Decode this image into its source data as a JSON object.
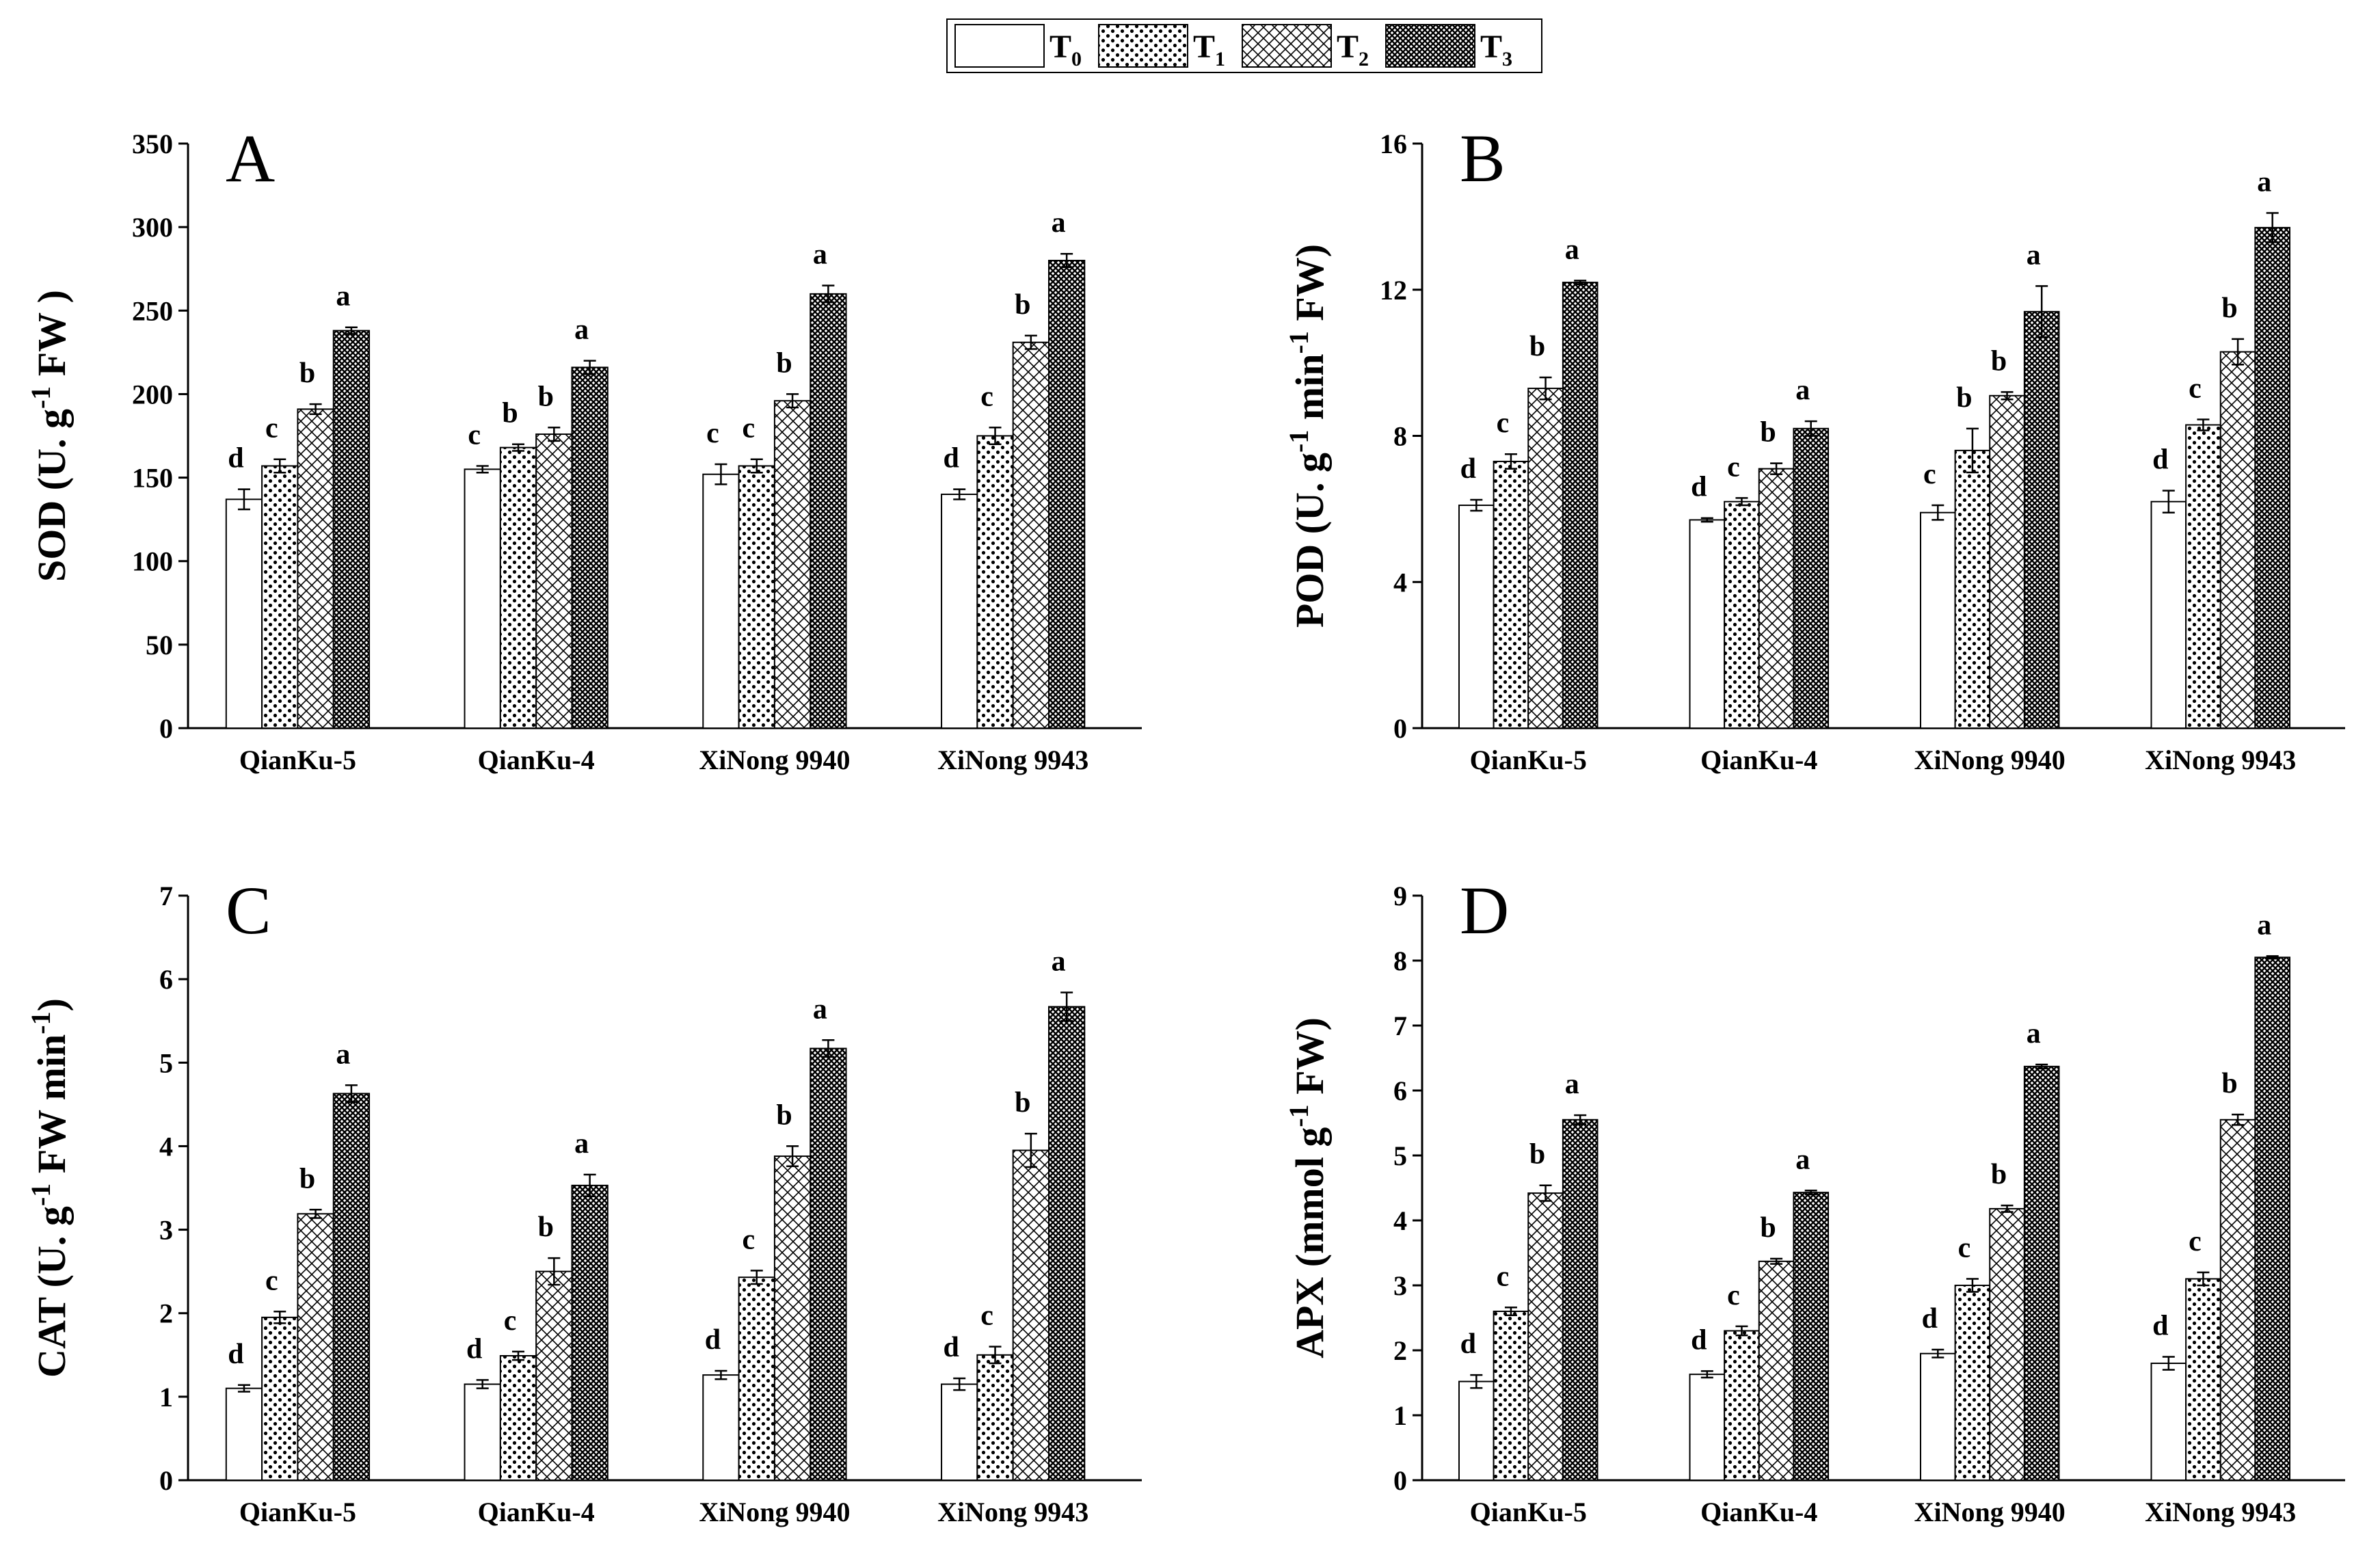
{
  "legend": [
    {
      "label": "T",
      "sub": "0",
      "pattern": "none"
    },
    {
      "label": "T",
      "sub": "1",
      "pattern": "dots"
    },
    {
      "label": "T",
      "sub": "2",
      "pattern": "crosshatch"
    },
    {
      "label": "T",
      "sub": "3",
      "pattern": "dense-crosshatch"
    }
  ],
  "chart_data": [
    {
      "type": "bar",
      "panel": "A",
      "ylabel": {
        "pre": "SOD (U. g",
        "sup": "-1",
        "post": " FW )"
      },
      "ylim": [
        0,
        350
      ],
      "yticks": [
        0,
        50,
        100,
        150,
        200,
        250,
        300,
        350
      ],
      "categories": [
        "QianKu-5",
        "QianKu-4",
        "XiNong 9940",
        "XiNong 9943"
      ],
      "series": [
        {
          "name": "T0",
          "values": [
            137,
            155,
            152,
            140
          ],
          "errors": [
            6,
            2,
            6,
            3
          ],
          "letters": [
            "d",
            "c",
            "c",
            "d"
          ]
        },
        {
          "name": "T1",
          "values": [
            157,
            168,
            157,
            175
          ],
          "errors": [
            4,
            2,
            4,
            5
          ],
          "letters": [
            "c",
            "b",
            "c",
            "c"
          ]
        },
        {
          "name": "T2",
          "values": [
            191,
            176,
            196,
            231
          ],
          "errors": [
            3,
            4,
            4,
            4
          ],
          "letters": [
            "b",
            "b",
            "b",
            "b"
          ]
        },
        {
          "name": "T3",
          "values": [
            238,
            216,
            260,
            280
          ],
          "errors": [
            2,
            4,
            5,
            4
          ],
          "letters": [
            "a",
            "a",
            "a",
            "a"
          ]
        }
      ]
    },
    {
      "type": "bar",
      "panel": "B",
      "ylabel": {
        "pre": "POD (U. g",
        "sup": "-1",
        "mid": " min",
        "sup2": "-1",
        "post": " FW)"
      },
      "ylim": [
        0,
        16
      ],
      "yticks": [
        0,
        4,
        8,
        12,
        16
      ],
      "categories": [
        "QianKu-5",
        "QianKu-4",
        "XiNong 9940",
        "XiNong 9943"
      ],
      "series": [
        {
          "name": "T0",
          "values": [
            6.1,
            5.7,
            5.9,
            6.2
          ],
          "errors": [
            0.15,
            0.05,
            0.2,
            0.3
          ],
          "letters": [
            "d",
            "d",
            "c",
            "d"
          ]
        },
        {
          "name": "T1",
          "values": [
            7.3,
            6.2,
            7.6,
            8.3
          ],
          "errors": [
            0.2,
            0.1,
            0.6,
            0.15
          ],
          "letters": [
            "c",
            "c",
            "b",
            "c"
          ]
        },
        {
          "name": "T2",
          "values": [
            9.3,
            7.1,
            9.1,
            10.3
          ],
          "errors": [
            0.3,
            0.15,
            0.1,
            0.35
          ],
          "letters": [
            "b",
            "b",
            "b",
            "b"
          ]
        },
        {
          "name": "T3",
          "values": [
            12.2,
            8.2,
            11.4,
            13.7
          ],
          "errors": [
            0.05,
            0.2,
            0.7,
            0.4
          ],
          "letters": [
            "a",
            "a",
            "a",
            "a"
          ]
        }
      ]
    },
    {
      "type": "bar",
      "panel": "C",
      "ylabel": {
        "pre": "CAT (U. g",
        "sup": "-1",
        "mid": " FW min",
        "sup2": "-1",
        "post": ")"
      },
      "ylim": [
        0,
        7
      ],
      "yticks": [
        0,
        1,
        2,
        3,
        4,
        5,
        6,
        7
      ],
      "categories": [
        "QianKu-5",
        "QianKu-4",
        "XiNong 9940",
        "XiNong 9943"
      ],
      "series": [
        {
          "name": "T0",
          "values": [
            1.1,
            1.15,
            1.26,
            1.15
          ],
          "errors": [
            0.04,
            0.05,
            0.05,
            0.07
          ],
          "letters": [
            "d",
            "d",
            "d",
            "d"
          ]
        },
        {
          "name": "T1",
          "values": [
            1.95,
            1.49,
            2.43,
            1.5
          ],
          "errors": [
            0.07,
            0.05,
            0.08,
            0.1
          ],
          "letters": [
            "c",
            "c",
            "c",
            "c"
          ]
        },
        {
          "name": "T2",
          "values": [
            3.19,
            2.5,
            3.88,
            3.95
          ],
          "errors": [
            0.05,
            0.16,
            0.12,
            0.2
          ],
          "letters": [
            "b",
            "b",
            "b",
            "b"
          ]
        },
        {
          "name": "T3",
          "values": [
            4.63,
            3.53,
            5.17,
            5.67
          ],
          "errors": [
            0.1,
            0.13,
            0.1,
            0.17
          ],
          "letters": [
            "a",
            "a",
            "a",
            "a"
          ]
        }
      ]
    },
    {
      "type": "bar",
      "panel": "D",
      "ylabel": {
        "pre": "APX (mmol g",
        "sup": "-1",
        "post": " FW)"
      },
      "ylim": [
        0,
        9
      ],
      "yticks": [
        0,
        1,
        2,
        3,
        4,
        5,
        6,
        7,
        8,
        9
      ],
      "categories": [
        "QianKu-5",
        "QianKu-4",
        "XiNong 9940",
        "XiNong 9943"
      ],
      "series": [
        {
          "name": "T0",
          "values": [
            1.52,
            1.63,
            1.95,
            1.8
          ],
          "errors": [
            0.1,
            0.05,
            0.06,
            0.1
          ],
          "letters": [
            "d",
            "d",
            "d",
            "d"
          ]
        },
        {
          "name": "T1",
          "values": [
            2.6,
            2.3,
            3.0,
            3.1
          ],
          "errors": [
            0.06,
            0.07,
            0.1,
            0.1
          ],
          "letters": [
            "c",
            "c",
            "c",
            "c"
          ]
        },
        {
          "name": "T2",
          "values": [
            4.42,
            3.37,
            4.18,
            5.55
          ],
          "errors": [
            0.12,
            0.04,
            0.05,
            0.08
          ],
          "letters": [
            "b",
            "b",
            "b",
            "b"
          ]
        },
        {
          "name": "T3",
          "values": [
            5.55,
            4.43,
            6.37,
            8.05
          ],
          "errors": [
            0.07,
            0.03,
            0.03,
            0.02
          ],
          "letters": [
            "a",
            "a",
            "a",
            "a"
          ]
        }
      ]
    }
  ]
}
